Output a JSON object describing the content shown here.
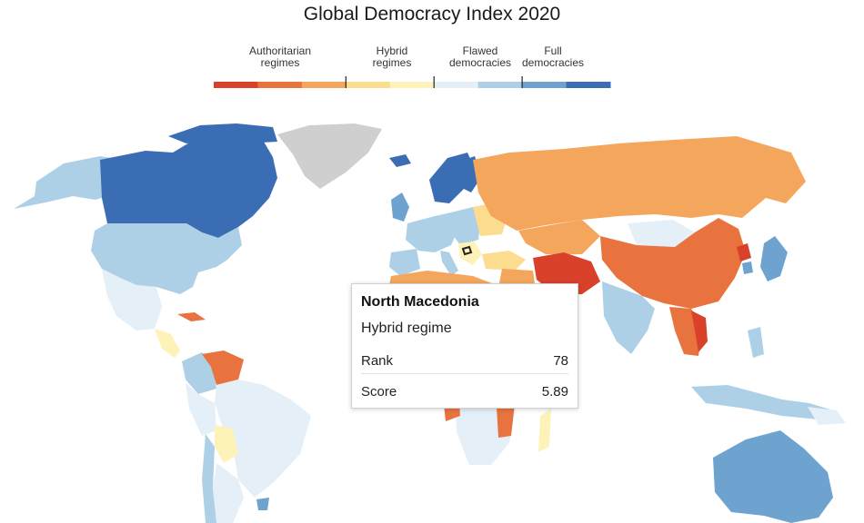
{
  "title": "Global Democracy Index 2020",
  "legend": {
    "categories": [
      {
        "label": "Authoritarian regimes",
        "line1": "Authoritarian",
        "line2": "regimes"
      },
      {
        "label": "Hybrid regimes",
        "line1": "Hybrid",
        "line2": "regimes"
      },
      {
        "label": "Flawed democracies",
        "line1": "Flawed",
        "line2": "democracies"
      },
      {
        "label": "Full democracies",
        "line1": "Full",
        "line2": "democracies"
      }
    ],
    "colors": [
      "#d9412b",
      "#e8733e",
      "#f4a75c",
      "#fcdc8e",
      "#fdf3b9",
      "#e4eff7",
      "#aed0e6",
      "#6ea3d0",
      "#3a6db3"
    ]
  },
  "colors": {
    "no_data": "#cfcfcf",
    "outline": "#ffffff",
    "highlight_outline": "#222222"
  },
  "tooltip": {
    "country": "North Macedonia",
    "regime": "Hybrid regime",
    "rank_label": "Rank",
    "rank_value": "78",
    "score_label": "Score",
    "score_value": "5.89"
  }
}
